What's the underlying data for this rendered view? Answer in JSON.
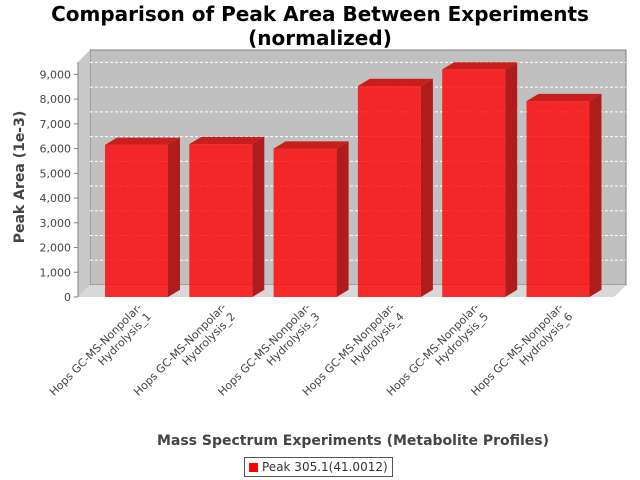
{
  "chart_data": {
    "type": "bar",
    "title_lines": [
      "Comparison of Peak Area Between Experiments",
      "(normalized)"
    ],
    "xlabel": "Mass Spectrum Experiments (Metabolite Profiles)",
    "ylabel": "Peak Area (1e-3)",
    "ylim": [
      0,
      9500
    ],
    "yticks": [
      0,
      1000,
      2000,
      3000,
      4000,
      5000,
      6000,
      7000,
      8000,
      9000
    ],
    "ytick_labels": [
      "0",
      "1,000",
      "2,000",
      "3,000",
      "4,000",
      "5,000",
      "6,000",
      "7,000",
      "8,000",
      "9,000"
    ],
    "grid": true,
    "legend_position": "bottom-center",
    "categories": [
      [
        "Hops GC-MS-Nonpolar-",
        "Hydrolysis_1"
      ],
      [
        "Hops GC-MS-Nonpolar-",
        "Hydrolysis_2"
      ],
      [
        "Hops GC-MS-Nonpolar-",
        "Hydrolysis_3"
      ],
      [
        "Hops GC-MS-Nonpolar-",
        "Hydrolysis_4"
      ],
      [
        "Hops GC-MS-Nonpolar-",
        "Hydrolysis_5"
      ],
      [
        "Hops GC-MS-Nonpolar-",
        "Hydrolysis_6"
      ]
    ],
    "series": [
      {
        "name": "Peak 305.1(41.0012)",
        "color": "#ff0000",
        "values": [
          6150,
          6180,
          6000,
          8530,
          9200,
          7920
        ]
      }
    ]
  }
}
